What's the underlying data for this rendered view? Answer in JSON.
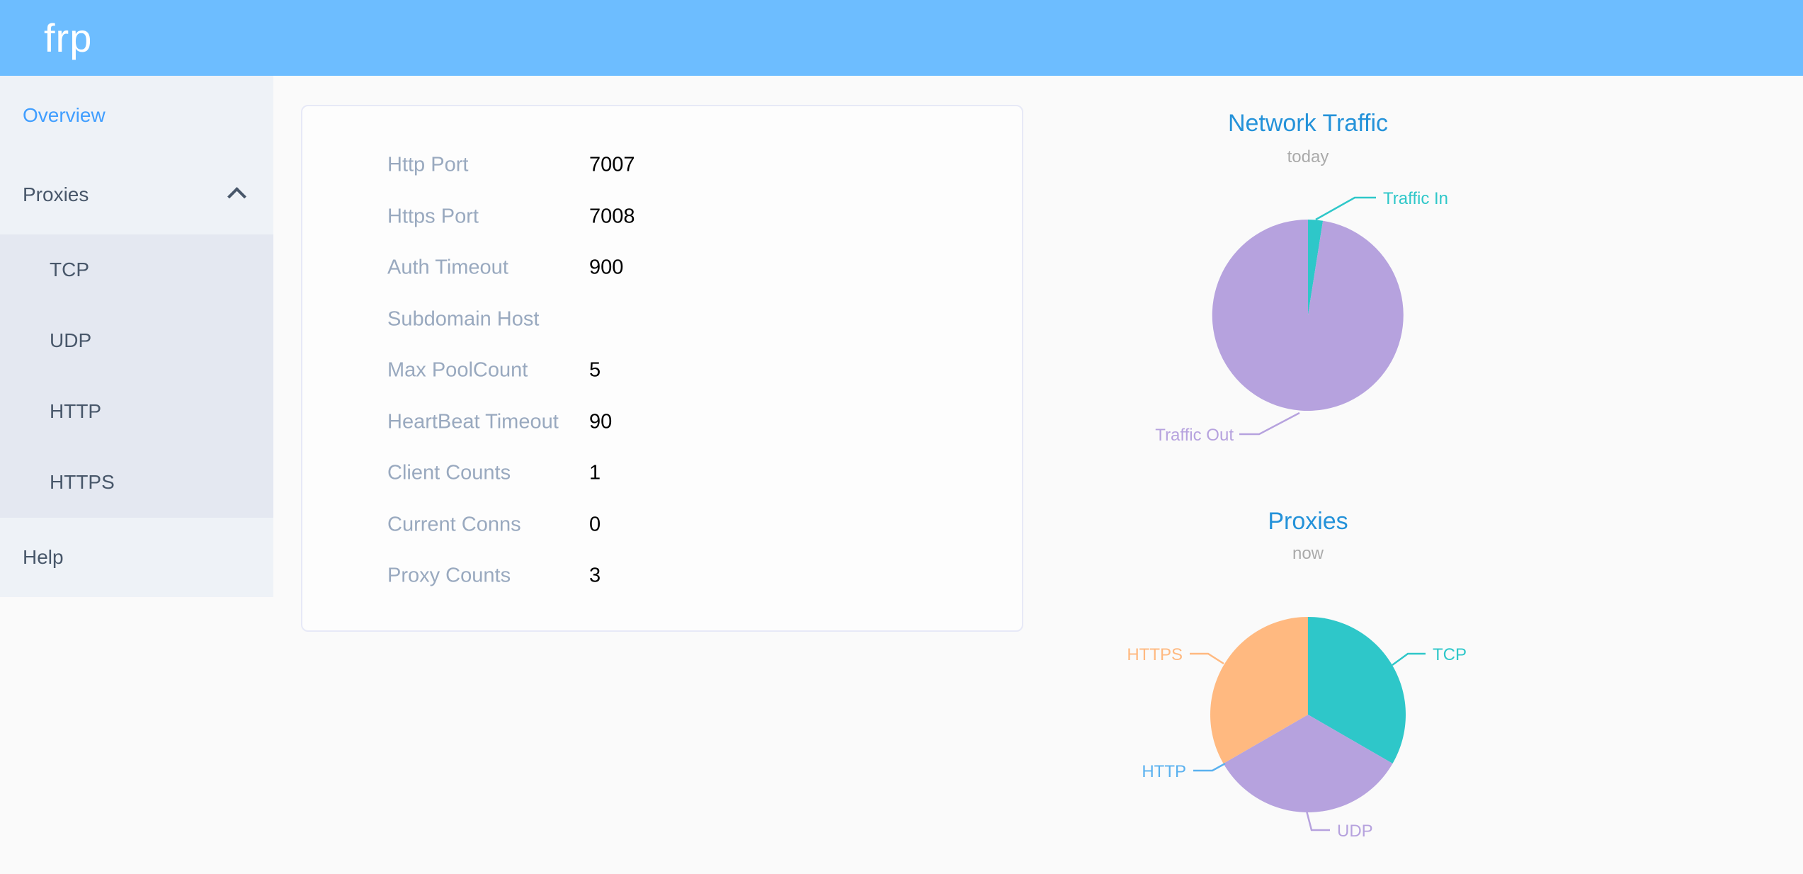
{
  "header": {
    "logo": "frp"
  },
  "sidebar": {
    "items": [
      {
        "label": "Overview",
        "active": true
      },
      {
        "label": "Proxies",
        "expanded": true
      },
      {
        "label": "TCP"
      },
      {
        "label": "UDP"
      },
      {
        "label": "HTTP"
      },
      {
        "label": "HTTPS"
      },
      {
        "label": "Help"
      }
    ]
  },
  "overview_panel": {
    "rows": [
      {
        "label": "Http Port",
        "value": "7007"
      },
      {
        "label": "Https Port",
        "value": "7008"
      },
      {
        "label": "Auth Timeout",
        "value": "900"
      },
      {
        "label": "Subdomain Host",
        "value": ""
      },
      {
        "label": "Max PoolCount",
        "value": "5"
      },
      {
        "label": "HeartBeat Timeout",
        "value": "90"
      },
      {
        "label": "Client Counts",
        "value": "1"
      },
      {
        "label": "Current Conns",
        "value": "0"
      },
      {
        "label": "Proxy Counts",
        "value": "3"
      }
    ]
  },
  "colors": {
    "header_bg": "#6dbdff",
    "sidebar_bg": "#eef2f7",
    "submenu_bg": "#e4e8f1",
    "menu_text": "#48576a",
    "menu_active": "#409eff",
    "panel_label": "#99a9bf",
    "chart_title": "#2492d9",
    "chart_subtitle": "#aaaaaa",
    "teal": "#2ec7c9",
    "purple": "#b6a2de",
    "blue": "#5ab1ef",
    "orange": "#ffb980"
  },
  "chart_data": [
    {
      "type": "pie",
      "title": "Network Traffic",
      "subtitle": "today",
      "legend_position": "none",
      "series": [
        {
          "name": "Traffic In",
          "value": 2.5,
          "color": "#2ec7c9"
        },
        {
          "name": "Traffic Out",
          "value": 97.5,
          "color": "#b6a2de"
        }
      ],
      "note": "values are visual proportions in percent; no numeric values shown on screen"
    },
    {
      "type": "pie",
      "title": "Proxies",
      "subtitle": "now",
      "legend_position": "none",
      "series": [
        {
          "name": "TCP",
          "value": 1,
          "color": "#2ec7c9"
        },
        {
          "name": "UDP",
          "value": 1,
          "color": "#b6a2de"
        },
        {
          "name": "HTTP",
          "value": 0,
          "color": "#5ab1ef"
        },
        {
          "name": "HTTPS",
          "value": 1,
          "color": "#ffb980"
        }
      ]
    }
  ]
}
